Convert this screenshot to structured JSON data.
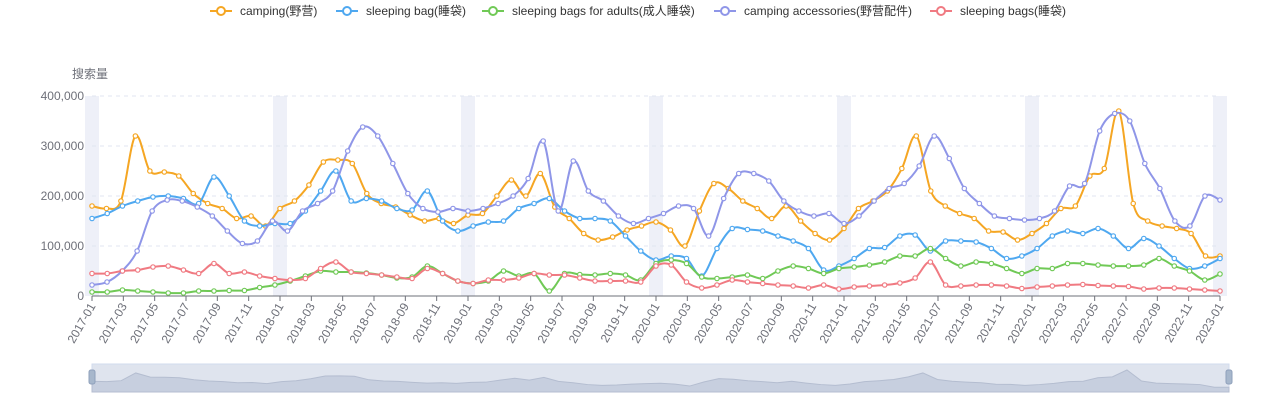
{
  "chart_data": {
    "type": "line",
    "ylabel": "搜索量",
    "ylim": [
      0,
      400000
    ],
    "yticks": [
      "0",
      "100,000",
      "200,000",
      "300,000",
      "400,000"
    ],
    "xticks": [
      "2017-01",
      "2017-03",
      "2017-05",
      "2017-07",
      "2017-09",
      "2017-11",
      "2018-01",
      "2018-03",
      "2018-05",
      "2018-07",
      "2018-09",
      "2018-11",
      "2019-01",
      "2019-03",
      "2019-05",
      "2019-07",
      "2019-09",
      "2019-11",
      "2020-01",
      "2020-03",
      "2020-05",
      "2020-07",
      "2020-09",
      "2020-11",
      "2021-01",
      "2021-03",
      "2021-05",
      "2021-07",
      "2021-09",
      "2021-11",
      "2022-01",
      "2022-03",
      "2022-05",
      "2022-07",
      "2022-09",
      "2022-11",
      "2023-01"
    ],
    "x_start": "2017-01",
    "x_end": "2023-01",
    "grid": "horizontal dashed",
    "legend_position": "top-center",
    "data_zoom_slider": true,
    "series": [
      {
        "name": "camping(野营)",
        "color": "#f5a623",
        "values": [
          180000,
          175000,
          190000,
          320000,
          250000,
          248000,
          240000,
          205000,
          185000,
          175000,
          155000,
          160000,
          140000,
          175000,
          190000,
          222000,
          268000,
          272000,
          265000,
          205000,
          185000,
          178000,
          162000,
          150000,
          155000,
          145000,
          162000,
          165000,
          200000,
          232000,
          200000,
          245000,
          178000,
          155000,
          125000,
          112000,
          118000,
          132000,
          140000,
          148000,
          132000,
          100000,
          170000,
          225000,
          215000,
          190000,
          175000,
          155000,
          180000,
          150000,
          125000,
          112000,
          135000,
          175000,
          190000,
          210000,
          255000,
          320000,
          210000,
          180000,
          165000,
          155000,
          130000,
          128000,
          112000,
          125000,
          145000,
          175000,
          180000,
          240000,
          255000,
          370000,
          185000,
          150000,
          140000,
          135000,
          125000,
          80000,
          80000
        ]
      },
      {
        "name": "sleeping bag(睡袋)",
        "color": "#4fa8f0",
        "values": [
          155000,
          165000,
          180000,
          190000,
          198000,
          200000,
          195000,
          185000,
          238000,
          200000,
          150000,
          140000,
          145000,
          145000,
          170000,
          210000,
          250000,
          190000,
          195000,
          190000,
          175000,
          172000,
          210000,
          150000,
          130000,
          140000,
          148000,
          150000,
          175000,
          185000,
          195000,
          170000,
          155000,
          155000,
          150000,
          120000,
          90000,
          72000,
          80000,
          75000,
          40000,
          95000,
          135000,
          133000,
          130000,
          120000,
          110000,
          95000,
          52000,
          60000,
          75000,
          95000,
          97000,
          120000,
          122000,
          90000,
          110000,
          110000,
          108000,
          95000,
          75000,
          80000,
          95000,
          120000,
          130000,
          125000,
          135000,
          120000,
          95000,
          115000,
          100000,
          75000,
          55000,
          60000,
          75000
        ]
      },
      {
        "name": "sleeping bags for adults(成人睡袋)",
        "color": "#70c956",
        "values": [
          8000,
          8000,
          12000,
          10000,
          8000,
          6000,
          6000,
          10000,
          10000,
          11000,
          11000,
          17000,
          22000,
          30000,
          40000,
          50000,
          48000,
          48000,
          46000,
          42000,
          36000,
          38000,
          60000,
          45000,
          30000,
          25000,
          30000,
          50000,
          40000,
          45000,
          10000,
          45000,
          43000,
          42000,
          45000,
          42000,
          32000,
          65000,
          72000,
          65000,
          38000,
          35000,
          38000,
          42000,
          35000,
          50000,
          60000,
          55000,
          45000,
          55000,
          58000,
          62000,
          68000,
          80000,
          80000,
          95000,
          75000,
          60000,
          68000,
          65000,
          55000,
          45000,
          55000,
          55000,
          65000,
          65000,
          62000,
          60000,
          60000,
          62000,
          75000,
          60000,
          50000,
          32000,
          44000
        ]
      },
      {
        "name": "camping accessories(野营配件)",
        "color": "#8f96e8",
        "values": [
          22000,
          28000,
          50000,
          90000,
          170000,
          192000,
          190000,
          178000,
          160000,
          130000,
          105000,
          110000,
          150000,
          130000,
          170000,
          185000,
          210000,
          290000,
          338000,
          320000,
          265000,
          205000,
          175000,
          168000,
          175000,
          170000,
          175000,
          185000,
          200000,
          235000,
          310000,
          170000,
          270000,
          210000,
          190000,
          160000,
          145000,
          155000,
          165000,
          180000,
          175000,
          120000,
          195000,
          245000,
          245000,
          230000,
          190000,
          170000,
          160000,
          165000,
          145000,
          160000,
          190000,
          215000,
          225000,
          260000,
          320000,
          275000,
          215000,
          185000,
          160000,
          155000,
          152000,
          155000,
          170000,
          220000,
          225000,
          330000,
          365000,
          350000,
          265000,
          215000,
          150000,
          140000,
          200000,
          192000
        ]
      },
      {
        "name": "sleeping bags(睡袋)",
        "color": "#f07a82",
        "values": [
          45000,
          45000,
          50000,
          52000,
          58000,
          60000,
          52000,
          45000,
          65000,
          45000,
          48000,
          40000,
          35000,
          32000,
          35000,
          55000,
          68000,
          48000,
          45000,
          42000,
          38000,
          35000,
          55000,
          45000,
          30000,
          25000,
          32000,
          32000,
          36000,
          45000,
          42000,
          42000,
          36000,
          30000,
          30000,
          30000,
          28000,
          60000,
          62000,
          28000,
          16000,
          22000,
          32000,
          28000,
          25000,
          22000,
          20000,
          16000,
          22000,
          14000,
          18000,
          20000,
          22000,
          26000,
          36000,
          68000,
          22000,
          20000,
          22000,
          22000,
          20000,
          15000,
          18000,
          20000,
          22000,
          23000,
          21000,
          20000,
          19000,
          14000,
          16000,
          16000,
          14000,
          12000,
          10000
        ]
      }
    ]
  }
}
